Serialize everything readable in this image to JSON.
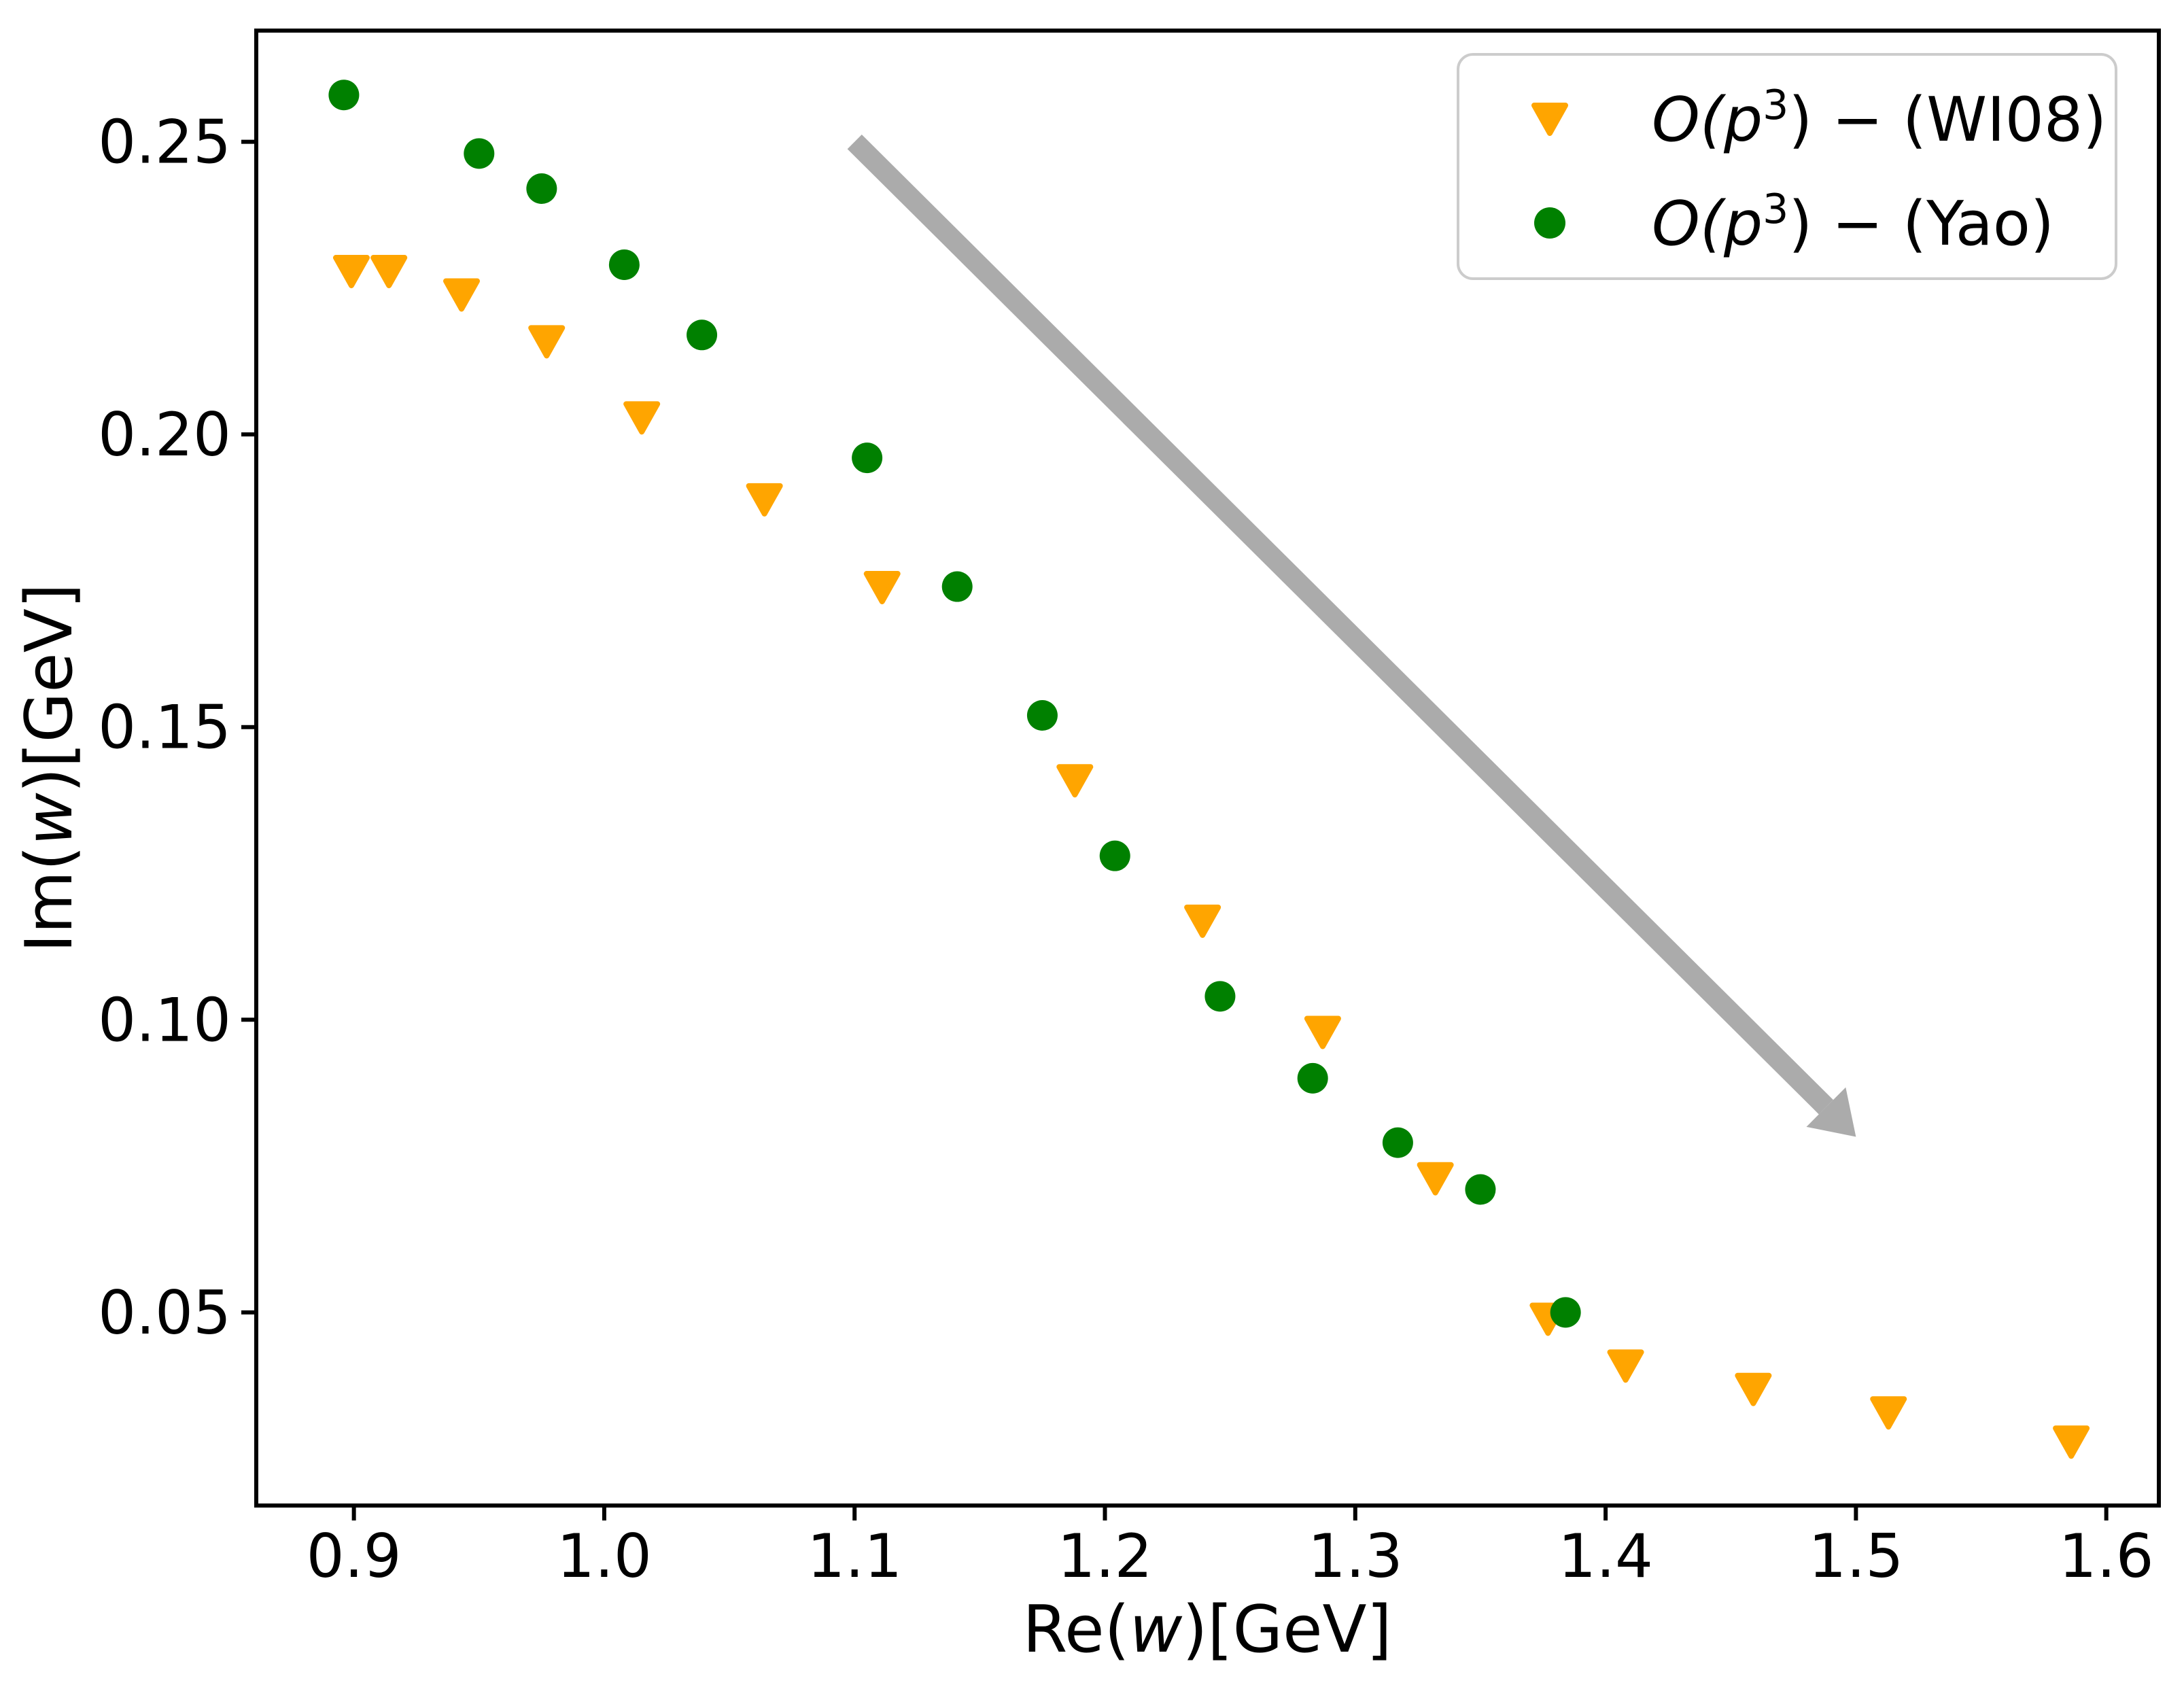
{
  "chart_data": {
    "type": "scatter",
    "title": "",
    "xlabel_parts": [
      "Re(",
      "w",
      ")[GeV]"
    ],
    "ylabel_parts": [
      "Im(",
      "w",
      ")[GeV]"
    ],
    "xlim": [
      0.861,
      1.621
    ],
    "ylim": [
      0.017,
      0.269
    ],
    "grid": false,
    "x_ticks": {
      "values": [
        0.9,
        1.0,
        1.1,
        1.2,
        1.3,
        1.4,
        1.5,
        1.6
      ],
      "labels": [
        "0.9",
        "1.0",
        "1.1",
        "1.2",
        "1.3",
        "1.4",
        "1.5",
        "1.6"
      ]
    },
    "y_ticks": {
      "values": [
        0.05,
        0.1,
        0.15,
        0.2,
        0.25
      ],
      "labels": [
        "0.05",
        "0.10",
        "0.15",
        "0.20",
        "0.25"
      ]
    },
    "series": [
      {
        "name": "O(p3)-(WI08)",
        "legend_parts": [
          "O(p",
          "3",
          ") − (WI08)"
        ],
        "marker": "triangle-down",
        "color": "#FFA500",
        "points": [
          [
            0.899,
            0.228
          ],
          [
            0.914,
            0.228
          ],
          [
            0.943,
            0.224
          ],
          [
            0.977,
            0.216
          ],
          [
            1.015,
            0.203
          ],
          [
            1.064,
            0.189
          ],
          [
            1.111,
            0.174
          ],
          [
            1.188,
            0.141
          ],
          [
            1.239,
            0.117
          ],
          [
            1.287,
            0.098
          ],
          [
            1.332,
            0.073
          ],
          [
            1.377,
            0.049
          ],
          [
            1.408,
            0.041
          ],
          [
            1.459,
            0.037
          ],
          [
            1.513,
            0.033
          ],
          [
            1.586,
            0.028
          ]
        ]
      },
      {
        "name": "O(p3)-(Yao)",
        "legend_parts": [
          "O(p",
          "3",
          ") − (Yao)"
        ],
        "marker": "circle",
        "color": "#008000",
        "points": [
          [
            0.896,
            0.258
          ],
          [
            0.95,
            0.248
          ],
          [
            0.975,
            0.242
          ],
          [
            1.008,
            0.229
          ],
          [
            1.039,
            0.217
          ],
          [
            1.105,
            0.196
          ],
          [
            1.141,
            0.174
          ],
          [
            1.175,
            0.152
          ],
          [
            1.204,
            0.128
          ],
          [
            1.246,
            0.104
          ],
          [
            1.283,
            0.09
          ],
          [
            1.317,
            0.079
          ],
          [
            1.35,
            0.071
          ],
          [
            1.384,
            0.05
          ]
        ]
      }
    ],
    "annotation_arrow": {
      "from": [
        1.1,
        0.25
      ],
      "to": [
        1.5,
        0.08
      ],
      "color": "#ABABAB"
    },
    "legend": {
      "position": "upper right"
    }
  }
}
